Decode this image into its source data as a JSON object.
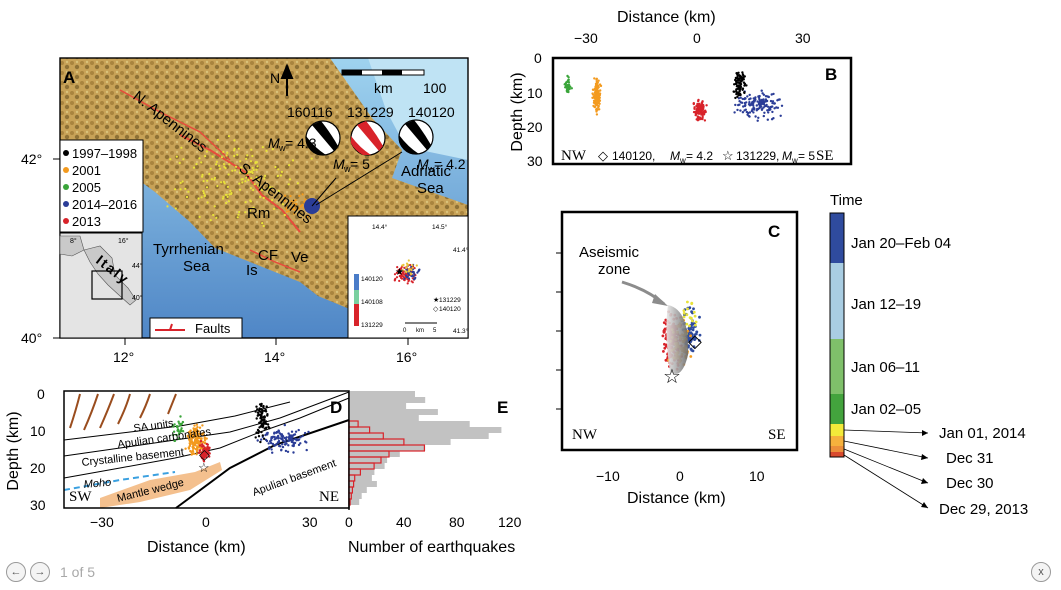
{
  "viewer": {
    "prev_icon": "arrow-left-icon",
    "next_icon": "arrow-right-icon",
    "close_icon": "close-icon",
    "prev_glyph": "←",
    "next_glyph": "→",
    "close_glyph": "x",
    "page_indicator": "1 of 5"
  },
  "figure": {
    "panel_a": {
      "label": "A",
      "lat_ticks": [
        "42°",
        "40°"
      ],
      "lon_ticks": [
        "12°",
        "14°",
        "16°"
      ],
      "place_names": [
        "N. Apennines",
        "S. Apennines",
        "Adriatic",
        "Sea",
        "Tyrrhenian",
        "Sea",
        "Rm",
        "CF",
        "Is",
        "Ve"
      ],
      "north_label": "N",
      "scale_label": "km",
      "scale_value": "100",
      "legend": [
        {
          "label": "1997–1998",
          "color": "#000000"
        },
        {
          "label": "2001",
          "color": "#f39a1e"
        },
        {
          "label": "2005",
          "color": "#3aa53a"
        },
        {
          "label": "2014–2016",
          "color": "#2b3d97"
        },
        {
          "label": "2013",
          "color": "#d8232a"
        }
      ],
      "mechanisms": [
        {
          "id": "160116",
          "mw": "= 4.3"
        },
        {
          "id": "131229",
          "mw": "= 5"
        },
        {
          "id": "140120",
          "mw": "= 4.2"
        }
      ],
      "mw_symbol": "M",
      "mw_sub": "w",
      "inset_country": "Italy",
      "inset_lon_ticks": [
        "8°",
        "16°"
      ],
      "inset_lat_ticks": [
        "44°",
        "40°"
      ],
      "faults_label": "Faults",
      "zoom_inset": {
        "lon_ticks": [
          "14.4°",
          "14.5°"
        ],
        "lat_ticks": [
          "41.4°",
          "41.3°"
        ],
        "colorbar_labels": [
          "140120",
          "140108",
          "131229"
        ],
        "legend": [
          "131229",
          "140120"
        ],
        "scale": [
          "0",
          "km",
          "5"
        ]
      }
    },
    "panel_b": {
      "label": "B",
      "xlabel": "Distance (km)",
      "ylabel": "Depth (km)",
      "x_ticks": [
        "−30",
        "0",
        "30"
      ],
      "y_ticks": [
        "0",
        "10",
        "20",
        "30"
      ],
      "nw": "NW",
      "se": "SE",
      "legend_diamond": "140120, ",
      "legend_diamond_mw": "= 4.2",
      "legend_star": "131229, ",
      "legend_star_mw": "= 5"
    },
    "panel_c": {
      "label": "C",
      "xlabel": "Distance (km)",
      "x_ticks": [
        "−10",
        "0",
        "10"
      ],
      "annotation_line1": "Aseismic",
      "annotation_line2": "zone",
      "nw": "NW",
      "se": "SE"
    },
    "time_bar": {
      "title": "Time",
      "segments": [
        {
          "label": "Jan 20–Feb 04",
          "color": "#2f4b9e"
        },
        {
          "label": "Jan 12–19",
          "color": "#a9cde2"
        },
        {
          "label": "Jan 06–11",
          "color": "#7fc06a"
        },
        {
          "label": "Jan 02–05",
          "color": "#43a33d"
        }
      ],
      "day_labels": [
        "Jan 01, 2014",
        "Dec 31",
        "Dec 30",
        "Dec 29, 2013"
      ],
      "day_colors": [
        "#f3ea3a",
        "#f6b13d",
        "#ec8f3b",
        "#d84a2e"
      ]
    },
    "panel_d": {
      "label": "D",
      "xlabel": "Distance (km)",
      "ylabel": "Depth (km)",
      "x_ticks": [
        "−30",
        "0",
        "30"
      ],
      "y_ticks": [
        "0",
        "10",
        "20",
        "30"
      ],
      "sw": "SW",
      "ne": "NE",
      "units": [
        "SA units",
        "Apulian carbonates",
        "Crystalline basement",
        "Moho",
        "Mantle wedge",
        "Apulian basement"
      ]
    },
    "panel_e": {
      "label": "E",
      "xlabel": "Number of earthquakes",
      "x_ticks": [
        "0",
        "40",
        "80",
        "120"
      ]
    }
  }
}
